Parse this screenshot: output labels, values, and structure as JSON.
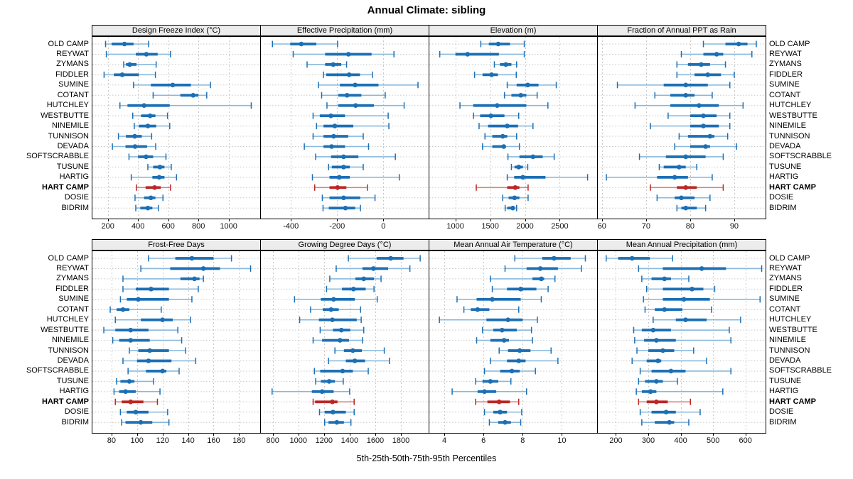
{
  "title": "Annual Climate: sibling",
  "footer": "5th-25th-50th-75th-95th Percentiles",
  "colors": {
    "series_blue": "#1b6fb5",
    "series_blue_light": "#8ab8dc",
    "series_red": "#bb2725",
    "series_red_light": "#d4837d",
    "grid": "#c8c8c8",
    "strip_bg": "#ececec",
    "panel_border": "#000000"
  },
  "chart_data": {
    "type": "scatter",
    "variant": "trellis percentile dot-whisker plot (2 rows x 4 cols, shared site axis)",
    "title": "Annual Climate: sibling",
    "xlabel_caption": "5th-25th-50th-75th-95th Percentiles",
    "legend_position": "none",
    "grid": "dashed vertical at ticks, dashed horizontal per site row",
    "percentile_labels": [
      "5th",
      "25th",
      "50th",
      "75th",
      "95th"
    ],
    "sites": [
      "OLD CAMP",
      "REYWAT",
      "ZYMANS",
      "FIDDLER",
      "SUMINE",
      "COTANT",
      "HUTCHLEY",
      "WESTBUTTE",
      "NINEMILE",
      "TUNNISON",
      "DEVADA",
      "SOFTSCRABBLE",
      "TUSUNE",
      "HARTIG",
      "HART CAMP",
      "DOSIE",
      "BIDRIM"
    ],
    "highlight_site": "HART CAMP",
    "panels": [
      {
        "label": "Design Freeze Index (°C)",
        "row": 0,
        "col": 0,
        "xlim": [
          93,
          1209
        ],
        "ticks": [
          200,
          400,
          600,
          800,
          1000
        ],
        "values": [
          [
            185,
            225,
            310,
            370,
            470
          ],
          [
            190,
            385,
            455,
            530,
            615
          ],
          [
            305,
            320,
            345,
            390,
            520
          ],
          [
            175,
            240,
            295,
            405,
            515
          ],
          [
            370,
            485,
            630,
            750,
            880
          ],
          [
            500,
            680,
            765,
            800,
            855
          ],
          [
            280,
            330,
            440,
            610,
            1150
          ],
          [
            365,
            420,
            480,
            515,
            595
          ],
          [
            375,
            405,
            465,
            520,
            610
          ],
          [
            270,
            320,
            378,
            425,
            490
          ],
          [
            230,
            317,
            380,
            460,
            517
          ],
          [
            340,
            400,
            453,
            500,
            585
          ],
          [
            465,
            500,
            545,
            575,
            620
          ],
          [
            355,
            495,
            540,
            575,
            655
          ],
          [
            390,
            450,
            510,
            550,
            615
          ],
          [
            380,
            440,
            485,
            515,
            565
          ],
          [
            385,
            415,
            465,
            495,
            535
          ]
        ]
      },
      {
        "label": "Effective Precipitation (mm)",
        "row": 0,
        "col": 1,
        "xlim": [
          -533,
          196
        ],
        "ticks": [
          -400,
          -200,
          0
        ],
        "values": [
          [
            -480,
            -403,
            -355,
            -290,
            -198
          ],
          [
            -390,
            -252,
            -151,
            -51,
            46
          ],
          [
            -330,
            -252,
            -217,
            -182,
            -159
          ],
          [
            -259,
            -247,
            -148,
            -101,
            -47
          ],
          [
            -281,
            -188,
            -122,
            -21,
            150
          ],
          [
            -267,
            -195,
            -157,
            -95,
            8
          ],
          [
            -244,
            -195,
            -120,
            -41,
            90
          ],
          [
            -304,
            -275,
            -227,
            -166,
            21
          ],
          [
            -289,
            -259,
            -210,
            -130,
            24
          ],
          [
            -304,
            -259,
            -215,
            -152,
            -87
          ],
          [
            -342,
            -259,
            -224,
            -166,
            -64
          ],
          [
            -293,
            -226,
            -172,
            -108,
            52
          ],
          [
            -237,
            -223,
            -172,
            -145,
            -87
          ],
          [
            -307,
            -233,
            -190,
            -145,
            69
          ],
          [
            -297,
            -233,
            -198,
            -160,
            -69
          ],
          [
            -264,
            -233,
            -172,
            -100,
            -36
          ],
          [
            -261,
            -236,
            -164,
            -122,
            -99
          ]
        ]
      },
      {
        "label": "Elevation (m)",
        "row": 0,
        "col": 2,
        "xlim": [
          615,
          3037
        ],
        "ticks": [
          1000,
          1500,
          2000,
          2500
        ],
        "values": [
          [
            1365,
            1480,
            1615,
            1785,
            1990
          ],
          [
            775,
            1000,
            1175,
            1625,
            1990
          ],
          [
            1560,
            1640,
            1725,
            1805,
            1880
          ],
          [
            1275,
            1390,
            1520,
            1610,
            1875
          ],
          [
            1745,
            1880,
            2040,
            2195,
            2450
          ],
          [
            1705,
            1805,
            1940,
            2020,
            2175
          ],
          [
            1065,
            1255,
            1600,
            2020,
            2330
          ],
          [
            1260,
            1355,
            1510,
            1705,
            1910
          ],
          [
            1340,
            1470,
            1745,
            1900,
            2115
          ],
          [
            1425,
            1530,
            1680,
            1745,
            1880
          ],
          [
            1390,
            1530,
            1695,
            1725,
            1920
          ],
          [
            1755,
            1920,
            2115,
            2255,
            2420
          ],
          [
            1805,
            1850,
            1910,
            1970,
            2040
          ],
          [
            1745,
            1845,
            1970,
            2295,
            2900
          ],
          [
            1300,
            1745,
            1860,
            1920,
            2045
          ],
          [
            1680,
            1765,
            1850,
            1920,
            2045
          ],
          [
            1715,
            1745,
            1825,
            1850,
            1880
          ]
        ]
      },
      {
        "label": "Fraction of Annual PPT as Rain",
        "row": 0,
        "col": 3,
        "xlim": [
          58.9,
          97.1
        ],
        "ticks": [
          60,
          70,
          80,
          90
        ],
        "values": [
          [
            83,
            88,
            91,
            93,
            95
          ],
          [
            78,
            83,
            86,
            87.5,
            94
          ],
          [
            77,
            79.5,
            82.5,
            84.5,
            88
          ],
          [
            77,
            81,
            84,
            87,
            90
          ],
          [
            63.5,
            74,
            79,
            84,
            89
          ],
          [
            72,
            75.5,
            79,
            81,
            85
          ],
          [
            67.5,
            75.5,
            82,
            86.5,
            92
          ],
          [
            75,
            80,
            83,
            86,
            89
          ],
          [
            71,
            80,
            83,
            86.5,
            89
          ],
          [
            77.5,
            79.5,
            84.5,
            85.5,
            88.5
          ],
          [
            76.5,
            80,
            83.5,
            84.5,
            90.5
          ],
          [
            68.5,
            74.5,
            79,
            83.5,
            87.5
          ],
          [
            73,
            74,
            77.5,
            79,
            81.5
          ],
          [
            61,
            72.5,
            76.5,
            79.5,
            85
          ],
          [
            71,
            77,
            79,
            81.5,
            87.5
          ],
          [
            72.5,
            76.5,
            78,
            81,
            84.5
          ],
          [
            77,
            78,
            79,
            81.5,
            83.5
          ]
        ]
      },
      {
        "label": "Frost-Free Days",
        "row": 1,
        "col": 0,
        "xlim": [
          64.5,
          196.5
        ],
        "ticks": [
          80,
          100,
          120,
          140,
          160,
          180
        ],
        "values": [
          [
            109,
            130,
            143,
            160,
            174
          ],
          [
            103,
            126,
            152,
            165,
            189
          ],
          [
            89,
            134,
            145,
            149,
            152
          ],
          [
            89,
            99,
            111,
            125,
            148
          ],
          [
            87,
            92,
            101,
            125,
            143
          ],
          [
            79,
            84,
            89,
            94,
            119
          ],
          [
            83,
            103,
            120,
            128,
            142
          ],
          [
            74,
            83,
            95,
            109,
            132
          ],
          [
            81,
            86,
            95,
            110,
            135
          ],
          [
            94,
            101,
            110,
            125,
            138
          ],
          [
            89,
            100,
            109,
            127,
            146
          ],
          [
            93,
            107,
            120,
            123,
            133
          ],
          [
            84,
            87,
            94,
            98,
            113
          ],
          [
            82,
            86,
            91,
            99,
            118
          ],
          [
            83,
            88,
            95,
            105,
            116
          ],
          [
            87,
            92,
            99,
            109,
            124
          ],
          [
            88,
            91,
            103,
            112,
            125
          ]
        ]
      },
      {
        "label": "Growing Degree Days (°C)",
        "row": 1,
        "col": 1,
        "xlim": [
          702,
          2016
        ],
        "ticks": [
          800,
          1000,
          1200,
          1400,
          1600,
          1800
        ],
        "values": [
          [
            1390,
            1610,
            1720,
            1820,
            1950
          ],
          [
            1295,
            1500,
            1585,
            1700,
            1870
          ],
          [
            1245,
            1445,
            1510,
            1590,
            1645
          ],
          [
            1220,
            1340,
            1430,
            1525,
            1590
          ],
          [
            970,
            1175,
            1275,
            1440,
            1615
          ],
          [
            1095,
            1190,
            1255,
            1315,
            1485
          ],
          [
            1010,
            1160,
            1265,
            1455,
            1490
          ],
          [
            1170,
            1270,
            1335,
            1405,
            1510
          ],
          [
            1115,
            1185,
            1325,
            1395,
            1500
          ],
          [
            1285,
            1355,
            1425,
            1495,
            1670
          ],
          [
            1235,
            1370,
            1440,
            1520,
            1710
          ],
          [
            1125,
            1170,
            1345,
            1425,
            1545
          ],
          [
            1135,
            1175,
            1240,
            1285,
            1350
          ],
          [
            795,
            1105,
            1185,
            1275,
            1400
          ],
          [
            1115,
            1130,
            1265,
            1305,
            1435
          ],
          [
            1165,
            1205,
            1270,
            1370,
            1435
          ],
          [
            1205,
            1235,
            1300,
            1355,
            1410
          ]
        ]
      },
      {
        "label": "Mean Annual Air Temperature (°C)",
        "row": 1,
        "col": 2,
        "xlim": [
          3.2,
          11.8
        ],
        "ticks": [
          4,
          6,
          8,
          10
        ],
        "values": [
          [
            7.6,
            9.0,
            9.6,
            10.45,
            11.2
          ],
          [
            7.1,
            8.2,
            8.9,
            9.8,
            11.0
          ],
          [
            6.35,
            8.5,
            8.95,
            9.1,
            9.65
          ],
          [
            6.45,
            7.2,
            7.9,
            8.7,
            9.3
          ],
          [
            4.65,
            5.65,
            6.45,
            7.9,
            8.95
          ],
          [
            5.0,
            5.35,
            5.7,
            6.3,
            7.8
          ],
          [
            3.75,
            6.15,
            7.25,
            8.0,
            8.75
          ],
          [
            5.95,
            6.5,
            6.95,
            7.7,
            8.45
          ],
          [
            5.65,
            6.35,
            7.05,
            7.3,
            8.5
          ],
          [
            6.8,
            7.25,
            7.85,
            8.4,
            9.45
          ],
          [
            6.35,
            7.2,
            7.8,
            8.15,
            9.8
          ],
          [
            6.05,
            6.85,
            7.45,
            7.85,
            8.65
          ],
          [
            5.6,
            5.95,
            6.35,
            6.75,
            7.4
          ],
          [
            4.4,
            5.7,
            6.05,
            6.65,
            8.2
          ],
          [
            5.6,
            6.2,
            6.8,
            7.35,
            7.8
          ],
          [
            6.05,
            6.5,
            6.85,
            7.2,
            7.95
          ],
          [
            6.3,
            6.75,
            7.1,
            7.4,
            7.9
          ]
        ]
      },
      {
        "label": "Mean Annual Precipitation (mm)",
        "row": 1,
        "col": 3,
        "xlim": [
          142,
          662
        ],
        "ticks": [
          200,
          300,
          400,
          500,
          600
        ],
        "values": [
          [
            170,
            207,
            250,
            305,
            375
          ],
          [
            270,
            345,
            465,
            540,
            650
          ],
          [
            280,
            310,
            350,
            370,
            425
          ],
          [
            295,
            345,
            435,
            470,
            505
          ],
          [
            285,
            345,
            410,
            490,
            645
          ],
          [
            290,
            320,
            350,
            405,
            495
          ],
          [
            315,
            385,
            415,
            480,
            585
          ],
          [
            255,
            280,
            315,
            370,
            550
          ],
          [
            258,
            287,
            325,
            385,
            555
          ],
          [
            265,
            300,
            345,
            380,
            440
          ],
          [
            250,
            295,
            330,
            340,
            480
          ],
          [
            275,
            310,
            370,
            415,
            555
          ],
          [
            270,
            290,
            325,
            345,
            390
          ],
          [
            263,
            280,
            307,
            325,
            530
          ],
          [
            270,
            295,
            325,
            360,
            430
          ],
          [
            275,
            310,
            355,
            385,
            460
          ],
          [
            280,
            320,
            365,
            380,
            425
          ]
        ]
      }
    ]
  }
}
